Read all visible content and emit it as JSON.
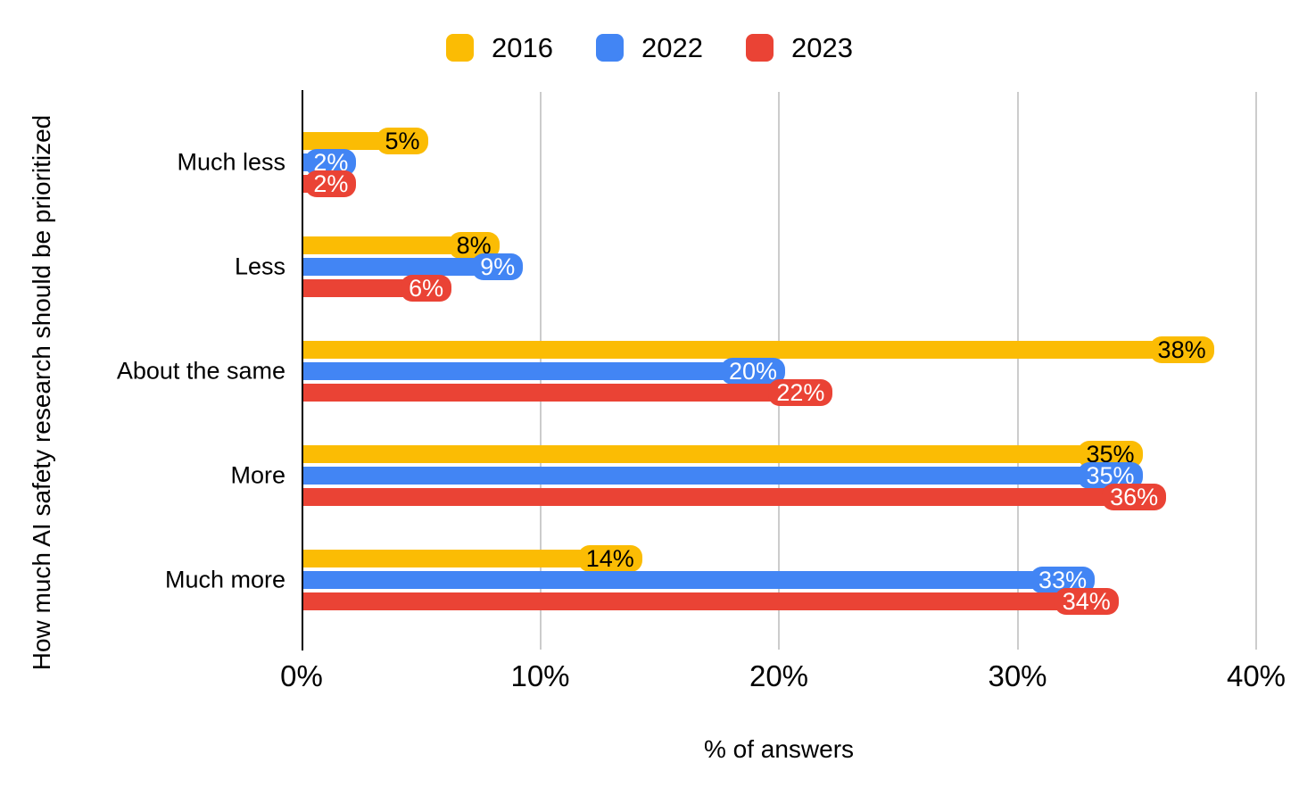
{
  "chart_data": {
    "type": "bar",
    "orientation": "horizontal",
    "categories": [
      "Much less",
      "Less",
      "About the same",
      "More",
      "Much more"
    ],
    "series": [
      {
        "name": "2016",
        "color": "#FBBC04",
        "label_text_color": "#000000",
        "values": [
          5,
          8,
          38,
          35,
          14
        ],
        "labels": [
          "5%",
          "8%",
          "38%",
          "35%",
          "14%"
        ]
      },
      {
        "name": "2022",
        "color": "#4285F4",
        "label_text_color": "#ffffff",
        "values": [
          2,
          9,
          20,
          35,
          33
        ],
        "labels": [
          "2%",
          "9%",
          "20%",
          "35%",
          "33%"
        ]
      },
      {
        "name": "2023",
        "color": "#EA4335",
        "label_text_color": "#ffffff",
        "values": [
          2,
          6,
          22,
          36,
          34
        ],
        "labels": [
          "2%",
          "6%",
          "22%",
          "36%",
          "34%"
        ]
      }
    ],
    "xlabel": "% of answers",
    "ylabel": "How much AI safety research should be prioritized",
    "xlim": [
      0,
      40
    ],
    "xticks": [
      {
        "value": 0,
        "label": "0%"
      },
      {
        "value": 10,
        "label": "10%"
      },
      {
        "value": 20,
        "label": "20%"
      },
      {
        "value": 30,
        "label": "30%"
      },
      {
        "value": 40,
        "label": "40%"
      }
    ],
    "grid": true,
    "legend_position": "top",
    "axis_color": "#000000",
    "gridline_color": "#cccccc",
    "background_color": "#ffffff"
  }
}
